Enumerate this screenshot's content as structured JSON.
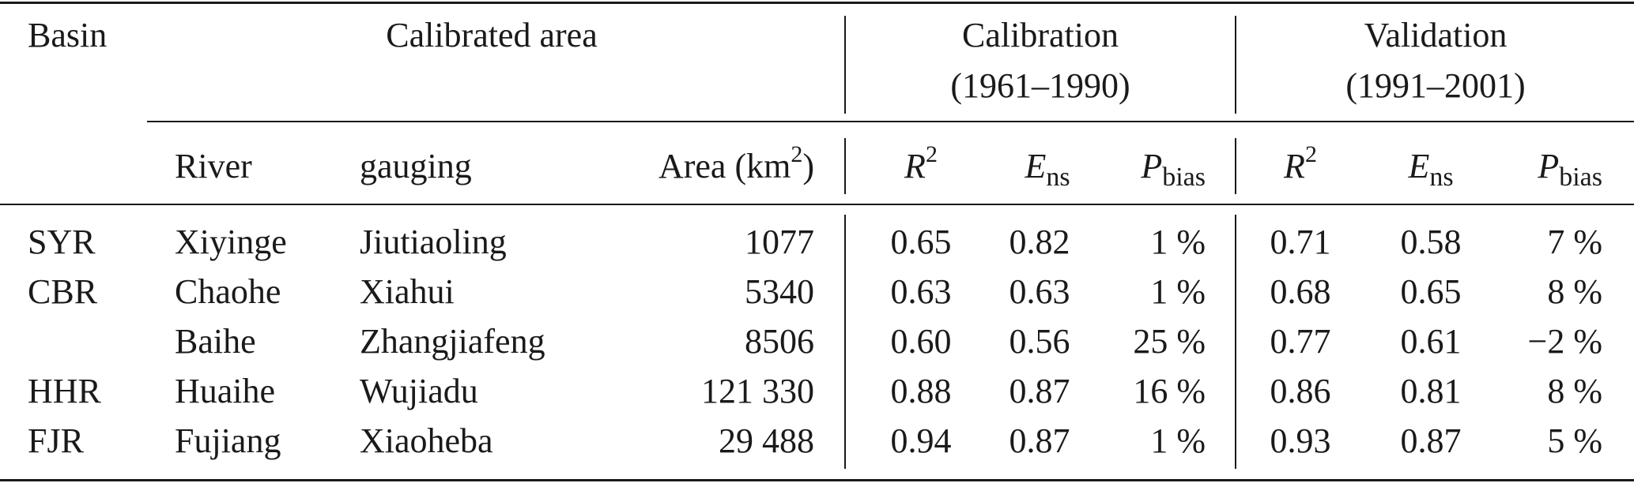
{
  "header": {
    "basin": "Basin",
    "calibrated_area": "Calibrated area",
    "calibration_line1": "Calibration",
    "calibration_line2": "(1961–1990)",
    "validation_line1": "Validation",
    "validation_line2": "(1991–2001)",
    "river": "River",
    "gauging": "gauging",
    "area_label": "Area (km",
    "area_sup": "2",
    "area_close": ")",
    "r_letter": "R",
    "r_sup": "2",
    "e_letter": "E",
    "e_sub": "ns",
    "p_letter": "P",
    "p_sub": "bias"
  },
  "rows": [
    {
      "basin": "SYR",
      "river": "Xiyinge",
      "gauging": "Jiutiaoling",
      "area": "1077",
      "cal_r2": "0.65",
      "cal_ens": "0.82",
      "cal_pbias": "1 %",
      "val_r2": "0.71",
      "val_ens": "0.58",
      "val_pbias": "7 %"
    },
    {
      "basin": "CBR",
      "river": "Chaohe",
      "gauging": "Xiahui",
      "area": "5340",
      "cal_r2": "0.63",
      "cal_ens": "0.63",
      "cal_pbias": "1 %",
      "val_r2": "0.68",
      "val_ens": "0.65",
      "val_pbias": "8 %"
    },
    {
      "basin": "",
      "river": "Baihe",
      "gauging": "Zhangjiafeng",
      "area": "8506",
      "cal_r2": "0.60",
      "cal_ens": "0.56",
      "cal_pbias": "25 %",
      "val_r2": "0.77",
      "val_ens": "0.61",
      "val_pbias": "−2 %"
    },
    {
      "basin": "HHR",
      "river": "Huaihe",
      "gauging": "Wujiadu",
      "area": "121 330",
      "cal_r2": "0.88",
      "cal_ens": "0.87",
      "cal_pbias": "16 %",
      "val_r2": "0.86",
      "val_ens": "0.81",
      "val_pbias": "8 %"
    },
    {
      "basin": "FJR",
      "river": "Fujiang",
      "gauging": "Xiaoheba",
      "area": "29 488",
      "cal_r2": "0.94",
      "cal_ens": "0.87",
      "cal_pbias": "1 %",
      "val_r2": "0.93",
      "val_ens": "0.87",
      "val_pbias": "5 %"
    }
  ]
}
